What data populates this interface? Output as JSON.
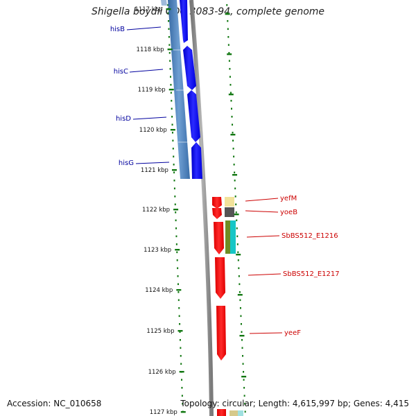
{
  "title": "Shigella boydii CDC 3083-94, complete genome",
  "accession": "Accession: NC_010658",
  "topology": "Topology: circular; Length: 4,615,997 bp; Genes: 4,415",
  "ruler_labels": [
    "1117 kbp",
    "1118 kbp",
    "1119 kbp",
    "1120 kbp",
    "1121 kbp",
    "1122 kbp",
    "1123 kbp",
    "1124 kbp",
    "1125 kbp",
    "1126 kbp",
    "1127 kbp"
  ],
  "gene_labels_left": [
    "hisB",
    "hisC",
    "hisD",
    "hisG"
  ],
  "gene_labels_right": [
    "yefM",
    "yoeB",
    "SbBS512_E1216",
    "SbBS512_E1217",
    "yeeF"
  ],
  "colors": {
    "forward_genes": "#0000ff",
    "forward_operon": "#4a7fb8",
    "reverse_genes": "#ff0000",
    "left_label": "#00009e",
    "right_label": "#cc0000",
    "ruler_ticks": "#117711",
    "backbone": "#8a8a8a"
  }
}
